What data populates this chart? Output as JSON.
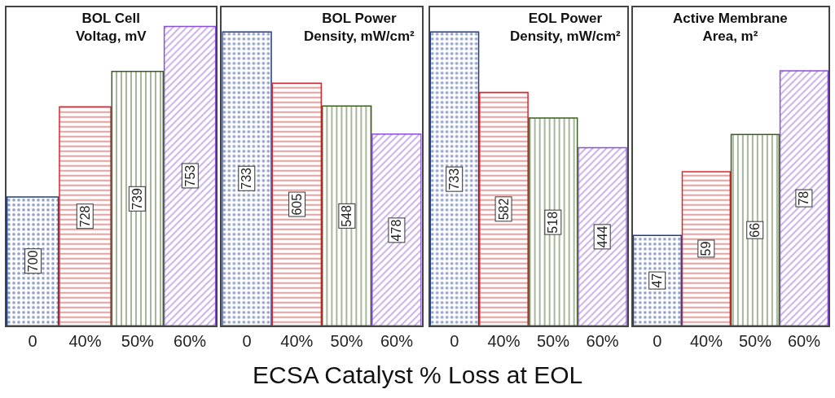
{
  "chart_data": [
    {
      "type": "bar",
      "title": "BOL Cell Voltag, mV",
      "xlabel": "ECSA Catalyst % Loss at EOL",
      "categories": [
        "0",
        "40%",
        "50%",
        "60%"
      ],
      "values": [
        700,
        728,
        739,
        753
      ],
      "colors": [
        "#1f3c88",
        "#e0242b",
        "#3a5f1e",
        "#8a4fd6"
      ],
      "ylim": [
        660,
        759
      ],
      "data_labels": true,
      "tick_labels": "x"
    },
    {
      "type": "bar",
      "title": "BOL Power Density, mW/cm²",
      "categories": [
        "0",
        "40%",
        "50%",
        "60%"
      ],
      "values": [
        733,
        605,
        548,
        478
      ],
      "colors": [
        "#1f3c88",
        "#e0242b",
        "#3a5f1e",
        "#8a4fd6"
      ],
      "ylim": [
        0,
        795
      ],
      "data_labels": true,
      "tick_labels": "x"
    },
    {
      "type": "bar",
      "title": "EOL Power Density, mW/cm²",
      "categories": [
        "0",
        "40%",
        "50%",
        "60%"
      ],
      "values": [
        733,
        582,
        518,
        444
      ],
      "colors": [
        "#1f3c88",
        "#e0242b",
        "#3a5f1e",
        "#8a4fd6"
      ],
      "ylim": [
        0,
        795
      ],
      "data_labels": true,
      "tick_labels": "x"
    },
    {
      "type": "bar",
      "title": "Active Membrane Area, m²",
      "categories": [
        "0",
        "40%",
        "50%",
        "60%"
      ],
      "values": [
        47,
        59,
        66,
        78
      ],
      "colors": [
        "#1f3c88",
        "#e0242b",
        "#3a5f1e",
        "#8a4fd6"
      ],
      "ylim": [
        30,
        90
      ],
      "data_labels": true,
      "tick_labels": "x"
    }
  ]
}
